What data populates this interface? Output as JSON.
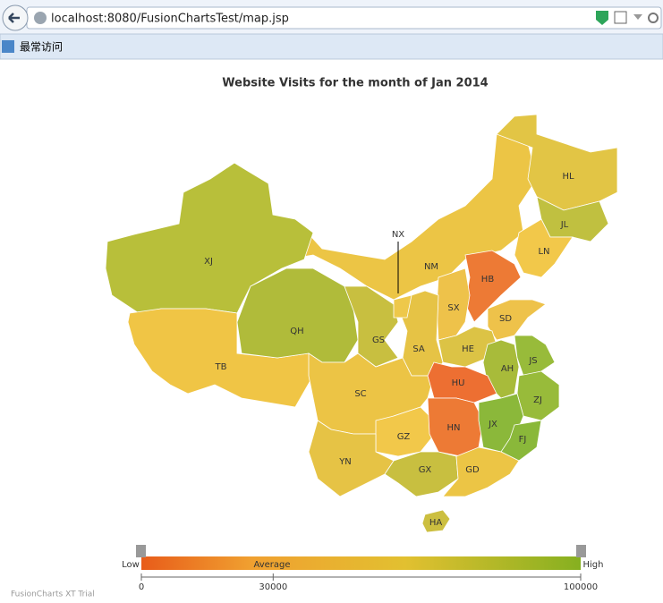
{
  "browser": {
    "url": "localhost:8080/FusionChartsTest/map.jsp",
    "bookmark": "最常访问"
  },
  "chart_data": {
    "type": "map",
    "title": "Website Visits for the month of Jan 2014",
    "regions": [
      {
        "label": "NM",
        "color": "#ecc545"
      },
      {
        "label": "XJ",
        "color": "#b8bf3a"
      },
      {
        "label": "TB",
        "color": "#f0c545"
      },
      {
        "label": "QH",
        "color": "#b0bb3a"
      },
      {
        "label": "GS",
        "color": "#c8bf40"
      },
      {
        "label": "HL",
        "color": "#e2c545"
      },
      {
        "label": "JL",
        "color": "#c0c040"
      },
      {
        "label": "LN",
        "color": "#f2c84a"
      },
      {
        "label": "HB",
        "color": "#ed7a35"
      },
      {
        "label": "SX",
        "color": "#eec24a"
      },
      {
        "label": "SD",
        "color": "#eec24a"
      },
      {
        "label": "HE",
        "color": "#dcc345"
      },
      {
        "label": "SA",
        "color": "#e6c345"
      },
      {
        "label": "NX",
        "color": "#eec84a"
      },
      {
        "label": "AH",
        "color": "#a8bb3a"
      },
      {
        "label": "JS",
        "color": "#98bb3a"
      },
      {
        "label": "ZJ",
        "color": "#98bb3a"
      },
      {
        "label": "SC",
        "color": "#ecc445"
      },
      {
        "label": "HU",
        "color": "#ed6f32"
      },
      {
        "label": "GZ",
        "color": "#f2c84a"
      },
      {
        "label": "HN",
        "color": "#ed7a35"
      },
      {
        "label": "JX",
        "color": "#8bb83a"
      },
      {
        "label": "FJ",
        "color": "#8ab83a"
      },
      {
        "label": "YN",
        "color": "#e6c345"
      },
      {
        "label": "GX",
        "color": "#c8bf40"
      },
      {
        "label": "GD",
        "color": "#ecc545"
      },
      {
        "label": "HA",
        "color": "#ccbf40"
      }
    ],
    "legend": {
      "low": "Low",
      "average": "Average",
      "high": "High",
      "ticks": [
        0,
        30000,
        100000
      ]
    }
  },
  "footer": "FusionCharts XT Trial"
}
